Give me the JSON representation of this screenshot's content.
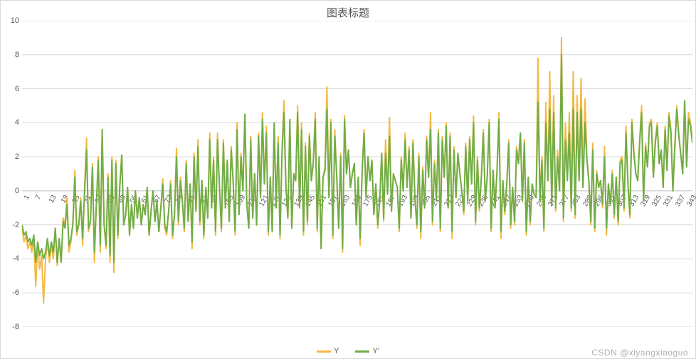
{
  "chart": {
    "type": "line",
    "title": "图表标题",
    "title_fontsize": 15,
    "title_color": "#595959",
    "background_color": "#ffffff",
    "border_color": "#d9d9d9",
    "grid_color": "#d9d9d9",
    "axis_text_color": "#595959",
    "axis_fontsize": 11,
    "x_tick_rotation_deg": -60,
    "y": {
      "min": -8,
      "max": 10,
      "step": 2,
      "ticks": [
        -8,
        -6,
        -4,
        -2,
        0,
        2,
        4,
        6,
        8,
        10
      ]
    },
    "x": {
      "min": 1,
      "max": 349,
      "step": 6,
      "ticks": [
        1,
        7,
        13,
        19,
        25,
        31,
        37,
        43,
        49,
        55,
        61,
        67,
        73,
        79,
        85,
        91,
        97,
        103,
        109,
        115,
        121,
        127,
        133,
        139,
        145,
        151,
        157,
        163,
        169,
        175,
        181,
        187,
        193,
        199,
        205,
        211,
        217,
        223,
        229,
        235,
        241,
        247,
        253,
        259,
        265,
        271,
        277,
        283,
        289,
        295,
        301,
        307,
        313,
        319,
        325,
        331,
        337,
        343,
        349
      ]
    },
    "zero_line_y": 0,
    "line_width": 2,
    "series": [
      {
        "name": "Y",
        "color": "#f4b942",
        "values": [
          -2.2,
          -3.0,
          -2.6,
          -3.4,
          -3.0,
          -3.6,
          -2.8,
          -5.6,
          -3.2,
          -4.6,
          -3.8,
          -6.6,
          -4.0,
          -3.0,
          -4.2,
          -3.2,
          -4.0,
          -2.2,
          -4.4,
          -2.8,
          -4.2,
          -1.6,
          -2.0,
          -0.4,
          -3.6,
          -3.0,
          -1.8,
          1.2,
          -2.6,
          -2.0,
          -0.4,
          -3.2,
          0.2,
          3.1,
          -2.4,
          -1.8,
          1.6,
          -4.2,
          -0.8,
          2.0,
          -3.6,
          3.0,
          -2.0,
          -3.4,
          1.0,
          -4.2,
          2.0,
          -4.8,
          1.8,
          -2.8,
          0.4,
          2.1,
          -2.0,
          -1.4,
          0.2,
          -2.6,
          -0.8,
          -2.2,
          0.0,
          -1.6,
          -0.4,
          -2.0,
          -0.8,
          -1.4,
          0.2,
          -2.6,
          -1.2,
          0.0,
          -1.8,
          -0.6,
          -2.4,
          -1.0,
          0.7,
          -2.2,
          -2.6,
          -1.2,
          0.6,
          -2.8,
          -1.4,
          2.5,
          -2.0,
          0.8,
          -0.6,
          -2.4,
          1.8,
          -1.8,
          0.4,
          -3.4,
          2.2,
          -1.2,
          3.0,
          -2.0,
          0.6,
          -2.8,
          0.2,
          -1.6,
          3.4,
          -1.0,
          2.0,
          -2.6,
          3.4,
          0.2,
          -2.4,
          3.0,
          -1.0,
          1.8,
          -1.8,
          2.6,
          0.6,
          -2.6,
          4.0,
          -1.4,
          2.2,
          0.0,
          4.5,
          -0.8,
          -2.2,
          3.2,
          -1.6,
          1.0,
          -2.0,
          3.4,
          -0.4,
          4.6,
          0.4,
          3.8,
          -2.6,
          0.8,
          -2.4,
          4.0,
          -1.0,
          3.2,
          -2.8,
          2.4,
          5.3,
          0.2,
          -1.6,
          4.2,
          -2.2,
          1.0,
          0.6,
          5.0,
          -1.0,
          4.0,
          -2.6,
          2.8,
          -2.0,
          3.4,
          0.6,
          1.8,
          4.6,
          -2.4,
          2.0,
          -3.4,
          0.8,
          1.4,
          6.1,
          -0.4,
          4.2,
          -2.8,
          3.6,
          0.8,
          -2.2,
          2.2,
          -3.6,
          4.4,
          1.0,
          2.4,
          0.2,
          1.0,
          1.6,
          -2.0,
          0.8,
          -3.2,
          1.2,
          3.6,
          -0.4,
          2.0,
          0.6,
          1.8,
          -1.4,
          0.4,
          -2.2,
          -0.6,
          2.2,
          -1.8,
          3.0,
          -0.2,
          4.3,
          -1.2,
          1.0,
          0.6,
          0.2,
          -2.4,
          2.0,
          0.0,
          3.4,
          0.2,
          2.6,
          -1.6,
          3.0,
          -0.4,
          -2.2,
          2.2,
          -2.8,
          1.4,
          -1.0,
          3.2,
          0.8,
          4.6,
          -2.0,
          1.8,
          -0.6,
          3.6,
          -2.4,
          3.2,
          0.8,
          4.0,
          -1.0,
          3.4,
          -2.8,
          2.6,
          -0.4,
          2.2,
          1.0,
          0.0,
          -1.4,
          2.8,
          -0.6,
          3.2,
          0.4,
          4.4,
          -2.0,
          2.0,
          -1.2,
          0.8,
          3.6,
          -0.6,
          0.8,
          4.2,
          -2.4,
          1.2,
          -1.0,
          1.2,
          4.6,
          -2.8,
          0.6,
          -1.4,
          0.4,
          3.0,
          -2.2,
          0.2,
          -2.0,
          2.6,
          1.8,
          3.4,
          -0.6,
          3.0,
          -2.6,
          0.8,
          -2.0,
          0.4,
          -0.2,
          -0.4,
          7.8,
          -0.6,
          2.0,
          -2.4,
          5.2,
          0.6,
          7.0,
          -0.8,
          5.6,
          -1.2,
          2.4,
          0.0,
          9.0,
          -1.8,
          4.0,
          0.8,
          4.6,
          -1.2,
          7.0,
          -1.6,
          5.6,
          0.6,
          6.6,
          0.2,
          5.4,
          2.0,
          0.6,
          -2.0,
          2.8,
          -2.4,
          1.2,
          0.2,
          0.6,
          -1.0,
          2.6,
          -2.6,
          0.4,
          -0.8,
          1.2,
          -1.6,
          0.8,
          -2.0,
          1.8,
          2.0,
          -1.2,
          3.8,
          0.4,
          -1.6,
          4.2,
          2.4,
          1.0,
          0.6,
          3.0,
          5.0,
          -0.6,
          2.8,
          1.4,
          4.0,
          4.2,
          0.8,
          3.0,
          4.0,
          1.6,
          2.4,
          0.2,
          3.8,
          1.2,
          4.6,
          3.6,
          0.0,
          2.8,
          5.0,
          3.4,
          2.2,
          1.0,
          5.3,
          1.4,
          4.6,
          4.0,
          3.0
        ]
      },
      {
        "name": "Y'",
        "color": "#70ad47",
        "values": [
          -2.0,
          -2.6,
          -2.4,
          -3.0,
          -2.8,
          -3.2,
          -2.6,
          -4.2,
          -3.0,
          -3.8,
          -3.4,
          -4.0,
          -3.6,
          -2.8,
          -3.8,
          -3.0,
          -3.6,
          -2.2,
          -4.2,
          -2.8,
          -4.2,
          -1.8,
          -2.2,
          -0.8,
          -3.2,
          -2.8,
          -2.0,
          0.8,
          -2.4,
          -2.0,
          -0.6,
          -2.8,
          0.0,
          2.4,
          -2.2,
          -1.8,
          1.4,
          -3.6,
          -0.8,
          1.8,
          -3.2,
          3.6,
          -2.0,
          -3.2,
          0.8,
          -3.8,
          1.8,
          -4.2,
          1.6,
          -2.6,
          0.2,
          2.1,
          -2.0,
          -1.4,
          0.2,
          -2.6,
          -0.8,
          -2.2,
          0.0,
          -1.6,
          -0.4,
          -2.0,
          -0.8,
          -1.4,
          0.2,
          -2.6,
          -1.2,
          0.0,
          -1.8,
          -0.6,
          -2.4,
          -1.0,
          0.4,
          -2.0,
          -2.4,
          -1.2,
          0.4,
          -2.6,
          -1.4,
          2.0,
          -1.8,
          0.6,
          -0.6,
          -2.2,
          1.6,
          -1.8,
          0.4,
          -3.0,
          2.0,
          -1.2,
          2.6,
          -1.8,
          0.6,
          -2.6,
          0.2,
          -1.6,
          3.0,
          -1.0,
          1.8,
          -2.4,
          3.0,
          0.2,
          -2.2,
          2.8,
          -1.0,
          1.8,
          -1.8,
          2.4,
          0.6,
          -2.4,
          3.6,
          -1.4,
          2.0,
          0.0,
          4.5,
          -0.8,
          -2.2,
          3.0,
          -1.6,
          1.0,
          -2.0,
          3.2,
          -0.4,
          4.2,
          0.4,
          3.4,
          -2.4,
          0.8,
          -2.4,
          4.0,
          -1.0,
          2.8,
          -2.6,
          2.2,
          4.6,
          0.2,
          -1.6,
          4.2,
          -2.2,
          1.0,
          0.6,
          4.6,
          -1.0,
          3.6,
          -2.4,
          2.6,
          -1.8,
          3.2,
          0.6,
          1.6,
          4.2,
          -2.2,
          2.0,
          -3.4,
          0.8,
          1.2,
          4.8,
          -0.4,
          4.0,
          -2.6,
          3.2,
          0.8,
          -2.2,
          2.0,
          -3.4,
          4.2,
          1.0,
          2.4,
          0.2,
          1.0,
          1.6,
          -2.0,
          0.8,
          -2.8,
          1.2,
          3.4,
          -0.4,
          2.0,
          0.6,
          1.8,
          -1.4,
          0.4,
          -2.0,
          -0.6,
          2.2,
          -1.6,
          2.2,
          -0.2,
          3.2,
          -1.2,
          1.0,
          0.6,
          0.2,
          -2.2,
          1.8,
          0.0,
          3.0,
          0.2,
          2.4,
          -1.6,
          2.8,
          -0.4,
          -2.0,
          2.0,
          -2.4,
          1.2,
          -1.0,
          3.0,
          0.8,
          3.6,
          -1.8,
          1.6,
          -0.6,
          3.4,
          -2.2,
          3.0,
          0.8,
          3.8,
          -1.0,
          3.2,
          -2.4,
          2.4,
          -0.4,
          2.2,
          1.0,
          0.0,
          -1.2,
          2.6,
          -0.6,
          3.0,
          0.4,
          4.0,
          -1.8,
          1.8,
          -1.0,
          0.8,
          3.4,
          -0.6,
          0.8,
          4.0,
          -2.2,
          1.2,
          -1.0,
          1.2,
          4.2,
          -2.4,
          0.6,
          -1.2,
          0.4,
          2.8,
          -2.0,
          0.2,
          -1.8,
          2.4,
          1.6,
          3.4,
          -0.6,
          2.8,
          -2.4,
          0.8,
          -1.8,
          0.4,
          -0.2,
          -0.4,
          5.2,
          -0.6,
          1.8,
          -2.2,
          4.0,
          0.6,
          4.8,
          -0.8,
          4.6,
          -1.0,
          2.0,
          0.0,
          8.0,
          -1.6,
          3.0,
          0.6,
          3.4,
          -1.0,
          4.8,
          -1.4,
          4.6,
          0.6,
          4.8,
          0.2,
          4.0,
          1.8,
          0.6,
          -1.8,
          2.4,
          -2.2,
          1.0,
          0.2,
          0.6,
          -0.8,
          2.0,
          -2.2,
          0.4,
          -0.8,
          1.0,
          -1.4,
          0.8,
          -1.8,
          1.6,
          1.8,
          -1.0,
          3.4,
          0.4,
          -1.4,
          4.0,
          2.2,
          1.0,
          0.6,
          2.8,
          4.6,
          -0.6,
          2.6,
          1.4,
          3.8,
          4.0,
          0.8,
          2.8,
          3.8,
          1.6,
          2.4,
          0.2,
          3.6,
          1.2,
          4.4,
          3.4,
          0.0,
          2.6,
          4.8,
          3.2,
          2.2,
          1.0,
          5.3,
          1.4,
          4.2,
          3.8,
          2.8
        ]
      }
    ],
    "legend": {
      "position": "bottom-center",
      "fontsize": 11,
      "swatch_width": 20
    },
    "watermark": "CSDN @xiyangxiaoguo"
  }
}
